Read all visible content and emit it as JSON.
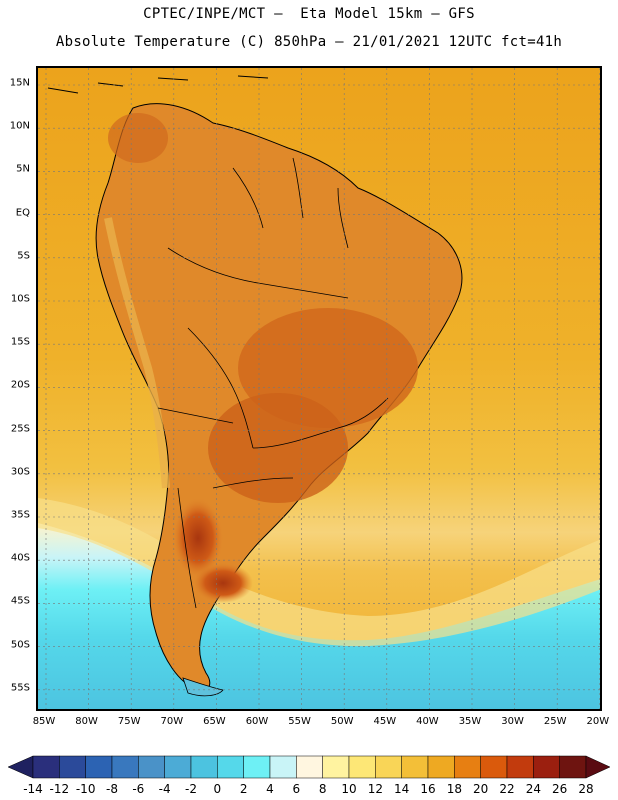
{
  "title_line1": "CPTEC/INPE/MCT –  Eta Model 15km – GFS",
  "title_line2": "Absolute Temperature (C) 850hPa – 21/01/2021 12UTC fct=41h",
  "lat_labels": [
    "15N",
    "10N",
    "5N",
    "EQ",
    "5S",
    "10S",
    "15S",
    "20S",
    "25S",
    "30S",
    "35S",
    "40S",
    "45S",
    "50S",
    "55S"
  ],
  "lon_labels": [
    "85W",
    "80W",
    "75W",
    "70W",
    "65W",
    "60W",
    "55W",
    "50W",
    "45W",
    "40W",
    "35W",
    "30W",
    "25W",
    "20W"
  ],
  "colorbar": {
    "labels": [
      "-14",
      "-12",
      "-10",
      "-8",
      "-6",
      "-4",
      "-2",
      "0",
      "2",
      "4",
      "6",
      "8",
      "10",
      "12",
      "14",
      "16",
      "18",
      "20",
      "22",
      "24",
      "26",
      "28"
    ],
    "colors": [
      "#2a2f7c",
      "#2b4a9a",
      "#2c63b3",
      "#3978be",
      "#4a92c8",
      "#4cabd6",
      "#4cc3e0",
      "#55d8ea",
      "#6ef0f5",
      "#c9f4f7",
      "#fff6e0",
      "#fff3a0",
      "#fde776",
      "#f9d557",
      "#f3bf38",
      "#eea922",
      "#e77f12",
      "#da5a0c",
      "#c23b0d",
      "#9b1f0f",
      "#6e1410"
    ],
    "left_arrow_color": "#1f2160",
    "right_arrow_color": "#5a0b12"
  },
  "map": {
    "ocean_color": "#efae1f",
    "south_color": "#5cd3ea",
    "land_hot_color": "#e08a28",
    "land_very_hot_color": "#c45a1b",
    "coast_color": "#000000",
    "grid_color": "#888888"
  }
}
